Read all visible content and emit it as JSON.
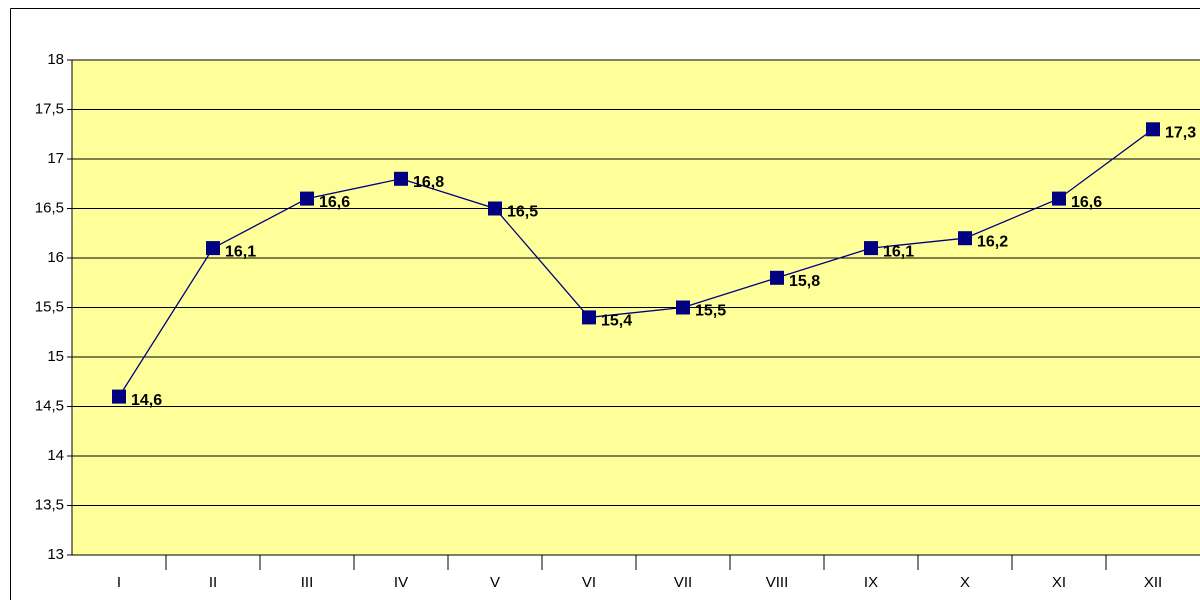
{
  "chart_data": {
    "type": "line",
    "categories": [
      "I",
      "II",
      "III",
      "IV",
      "V",
      "VI",
      "VII",
      "VIII",
      "IX",
      "X",
      "XI",
      "XII"
    ],
    "series": [
      {
        "color": "#000080",
        "values": [
          14.6,
          16.1,
          16.6,
          16.8,
          16.5,
          15.4,
          15.5,
          15.8,
          16.1,
          16.2,
          16.6,
          17.3
        ],
        "value_labels": [
          "14,6",
          "16,1",
          "16,6",
          "16,8",
          "16,5",
          "15,4",
          "15,5",
          "15,8",
          "16,1",
          "16,2",
          "16,6",
          "17,3"
        ]
      }
    ],
    "ylim": [
      13,
      18
    ],
    "yticks": [
      13,
      {
        "value": 13.5,
        "label": "13,5"
      },
      14,
      {
        "value": 14.5,
        "label": "14,5"
      },
      15,
      {
        "value": 15.5,
        "label": "15,5"
      },
      16,
      {
        "value": 16.5,
        "label": "16,5"
      },
      17,
      {
        "value": 17.5,
        "label": "17,5"
      },
      18
    ],
    "grid": true,
    "plot_background": "#ffff99"
  }
}
